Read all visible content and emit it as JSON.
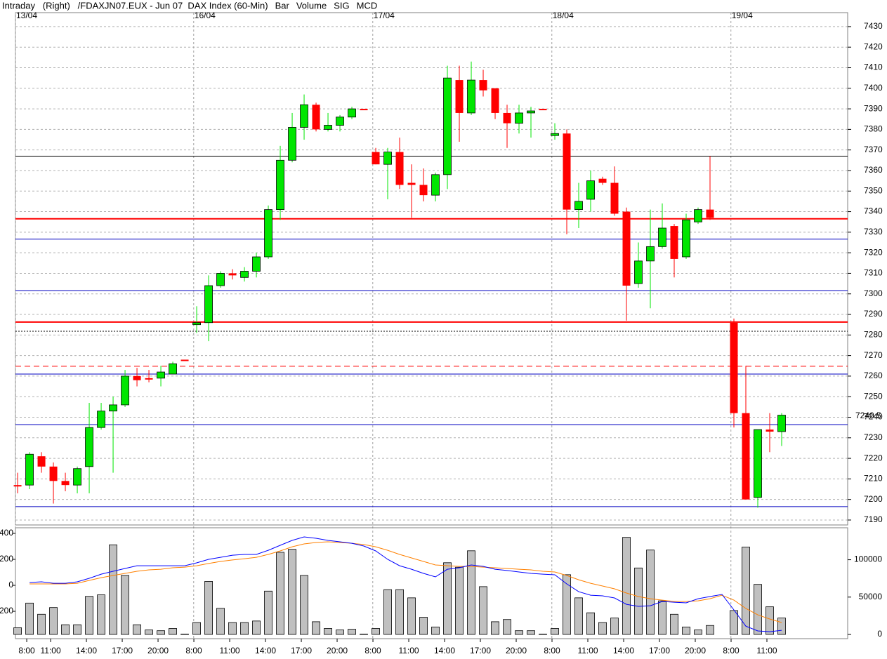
{
  "chart_data": [
    {
      "type": "candlestick",
      "title": "Intraday   (Right)   /FDAXJN07.EUX - Jun 07  DAX Index (60-Min)",
      "xlim": [
        -0.18,
        69.53
      ],
      "ylim": [
        7187.6,
        7432.7
      ],
      "yticks": [
        7190,
        7200,
        7210,
        7220,
        7230,
        7240,
        7250,
        7260,
        7270,
        7280,
        7290,
        7300,
        7310,
        7320,
        7330,
        7340,
        7350,
        7360,
        7370,
        7380,
        7390,
        7400,
        7410,
        7420,
        7430
      ],
      "date_ticks": [
        {
          "value": -0.18,
          "label": "13/04"
        },
        {
          "value": 14.75,
          "label": "16/04"
        },
        {
          "value": 29.75,
          "label": "17/04"
        },
        {
          "value": 44.75,
          "label": "18/04"
        },
        {
          "value": 59.75,
          "label": "19/04"
        }
      ],
      "grid": true,
      "up_color": "#00e600",
      "down_color": "#ff0000",
      "last_price": 7240.5,
      "last_price_color": "#ff0000",
      "levels": [
        {
          "value": 7367,
          "color": "#000000",
          "style": "solid",
          "width": 1
        },
        {
          "value": 7336.5,
          "color": "#ff0000",
          "style": "solid",
          "width": 2
        },
        {
          "value": 7326.6,
          "color": "#0000c0",
          "style": "solid",
          "width": 1
        },
        {
          "value": 7301.6,
          "color": "#0000c0",
          "style": "solid",
          "width": 1
        },
        {
          "value": 7286.3,
          "color": "#ff0000",
          "style": "solid",
          "width": 2
        },
        {
          "value": 7281.8,
          "color": "#000000",
          "style": "dotted",
          "width": 1
        },
        {
          "value": 7264.8,
          "color": "#ff0000",
          "style": "dashed",
          "width": 1
        },
        {
          "value": 7261,
          "color": "#0000c0",
          "style": "solid",
          "width": 1
        },
        {
          "value": 7236.4,
          "color": "#0000c0",
          "style": "solid",
          "width": 1
        },
        {
          "value": 7196.5,
          "color": "#0000c0",
          "style": "solid",
          "width": 1
        }
      ],
      "series": [
        {
          "name": "Bar",
          "color": "#ff0000",
          "open": [
            7207,
            7207,
            7221,
            7216,
            7209,
            7207,
            7216,
            7235,
            7243,
            7246,
            7260,
            7259,
            7259,
            7261,
            7268,
            7285,
            7286,
            7304,
            7310,
            7308,
            7311,
            7318,
            7341,
            7365,
            7381,
            7392,
            7380,
            7382,
            7386,
            7390,
            7369,
            7363,
            7369,
            7354,
            7353,
            7348,
            7358,
            7404,
            7388,
            7404,
            7400,
            7388,
            7383,
            7388,
            7390,
            7377,
            7378,
            7341,
            7346,
            7356,
            7354,
            7340,
            7305,
            7316,
            7323,
            7333,
            7318,
            7335,
            7341,
            null,
            7286,
            7242,
            7201,
            7234,
            7233
          ],
          "high": [
            7213,
            7223,
            7223,
            7218,
            7213,
            7216,
            7247,
            7247,
            7250,
            7263,
            7264,
            7263,
            7265,
            7267,
            7268,
            7294,
            7309,
            7311,
            7312,
            7313,
            7320,
            7343,
            7372,
            7388,
            7397,
            7393,
            7388,
            7387,
            7391,
            7390,
            7371,
            7371,
            7376,
            7363,
            7361,
            7359,
            7411,
            7411,
            7413,
            7409,
            7400,
            7392,
            7392,
            7391,
            7390,
            7383,
            7380,
            7354,
            7360,
            7357,
            7362,
            7342,
            7325,
            7341,
            7344,
            7334,
            7339,
            7342,
            7367,
            null,
            7288,
            7265,
            7234,
            7242,
            7242
          ],
          "low": [
            7203,
            7205,
            7213,
            7198,
            7204,
            7203,
            7203,
            7234,
            7213,
            7245,
            7255,
            7257,
            7255,
            7261,
            7268,
            7281,
            7277,
            7303,
            7307,
            7306,
            7308,
            7317,
            7336,
            7364,
            7375,
            7379,
            7379,
            7379,
            7385,
            7390,
            7363,
            7346,
            7351,
            7337,
            7345,
            7345,
            7351,
            7374,
            7387,
            7396,
            7385,
            7371,
            7378,
            7376,
            7390,
            7375,
            7329,
            7332,
            7340,
            7353,
            7338,
            7287,
            7303,
            7293,
            7322,
            7308,
            7317,
            7334,
            7336,
            null,
            7235,
            7200,
            7196,
            7223,
            7226
          ],
          "close": [
            7207,
            7222,
            7216,
            7209,
            7207,
            7215,
            7235,
            7243,
            7246,
            7260,
            7258,
            7259,
            7262,
            7266,
            7268,
            7286,
            7304,
            7310,
            7309,
            7311,
            7318,
            7341,
            7365,
            7381,
            7392,
            7380,
            7382,
            7386,
            7390,
            7390,
            7363,
            7369,
            7353,
            7353,
            7348,
            7358,
            7405,
            7388,
            7404,
            7399,
            7388,
            7383,
            7388,
            7389,
            7390,
            7378,
            7341,
            7345,
            7355,
            7354,
            7339,
            7304,
            7316,
            7323,
            7332,
            7317,
            7336,
            7341,
            7337,
            null,
            7242,
            7200,
            7234,
            7233,
            7241
          ]
        }
      ]
    },
    {
      "type": "volume",
      "xlim": [
        -0.18,
        69.53
      ],
      "ylim": [
        -378,
        427
      ],
      "yticks": [
        400,
        200,
        0,
        -200
      ],
      "y2lim": [
        0,
        140000
      ],
      "y2ticks": [
        0,
        50000,
        100000
      ],
      "xticks": [
        {
          "value": 1,
          "label": "8:00"
        },
        {
          "value": 3,
          "label": "11:00"
        },
        {
          "value": 6,
          "label": "14:00"
        },
        {
          "value": 9,
          "label": "17:00"
        },
        {
          "value": 12,
          "label": "20:00"
        },
        {
          "value": 15,
          "label": "8:00"
        },
        {
          "value": 18,
          "label": "11:00"
        },
        {
          "value": 21,
          "label": "14:00"
        },
        {
          "value": 24,
          "label": "17:00"
        },
        {
          "value": 27,
          "label": "20:00"
        },
        {
          "value": 30,
          "label": "8:00"
        },
        {
          "value": 33,
          "label": "11:00"
        },
        {
          "value": 36,
          "label": "14:00"
        },
        {
          "value": 39,
          "label": "17:00"
        },
        {
          "value": 42,
          "label": "20:00"
        },
        {
          "value": 45,
          "label": "8:00"
        },
        {
          "value": 48,
          "label": "11:00"
        },
        {
          "value": 51,
          "label": "14:00"
        },
        {
          "value": 54,
          "label": "17:00"
        },
        {
          "value": 57,
          "label": "20:00"
        },
        {
          "value": 60,
          "label": "8:00"
        },
        {
          "value": 63,
          "label": "11:00"
        }
      ],
      "series": [
        {
          "name": "Volume",
          "color": "#c0c0c0",
          "axis": "y2",
          "values": [
            9000,
            42000,
            27000,
            36000,
            13000,
            13000,
            51000,
            53000,
            120000,
            79000,
            13000,
            6000,
            5000,
            8000,
            500,
            16000,
            71000,
            35000,
            16000,
            16000,
            18000,
            58000,
            110000,
            114000,
            79000,
            17000,
            8000,
            6000,
            7000,
            500,
            8000,
            60000,
            60000,
            49000,
            23000,
            10000,
            96000,
            90000,
            112000,
            64000,
            17000,
            20000,
            5000,
            5000,
            500,
            8000,
            80000,
            49000,
            29000,
            16000,
            22000,
            130000,
            89000,
            113000,
            45000,
            27000,
            10000,
            6000,
            12000,
            null,
            32000,
            117000,
            67000,
            37000,
            22000
          ]
        },
        {
          "name": "SIG",
          "color": "#ff8000",
          "values": [
            null,
            11,
            11,
            11,
            11,
            16,
            38,
            59,
            76,
            92,
            108,
            119,
            124,
            135,
            140,
            151,
            168,
            184,
            195,
            205,
            216,
            238,
            265,
            297,
            319,
            330,
            335,
            330,
            324,
            314,
            297,
            270,
            238,
            211,
            184,
            157,
            151,
            146,
            146,
            140,
            135,
            130,
            124,
            119,
            108,
            103,
            76,
            43,
            16,
            -5,
            -27,
            -59,
            -86,
            -103,
            -114,
            -124,
            -124,
            -119,
            -103,
            -76,
            -114,
            -178,
            -227,
            -259,
            -286
          ]
        },
        {
          "name": "MCD",
          "color": "#0000ff",
          "values": [
            null,
            22,
            27,
            16,
            16,
            27,
            54,
            86,
            108,
            130,
            151,
            151,
            151,
            151,
            151,
            173,
            200,
            216,
            232,
            238,
            238,
            270,
            308,
            346,
            373,
            362,
            346,
            335,
            324,
            303,
            265,
            200,
            151,
            124,
            92,
            65,
            124,
            135,
            157,
            146,
            124,
            114,
            103,
            92,
            86,
            81,
            11,
            -49,
            -76,
            -81,
            -97,
            -146,
            -162,
            -157,
            -124,
            -130,
            -135,
            -103,
            -86,
            -70,
            -189,
            -314,
            -351,
            -357,
            -346
          ]
        }
      ]
    }
  ]
}
